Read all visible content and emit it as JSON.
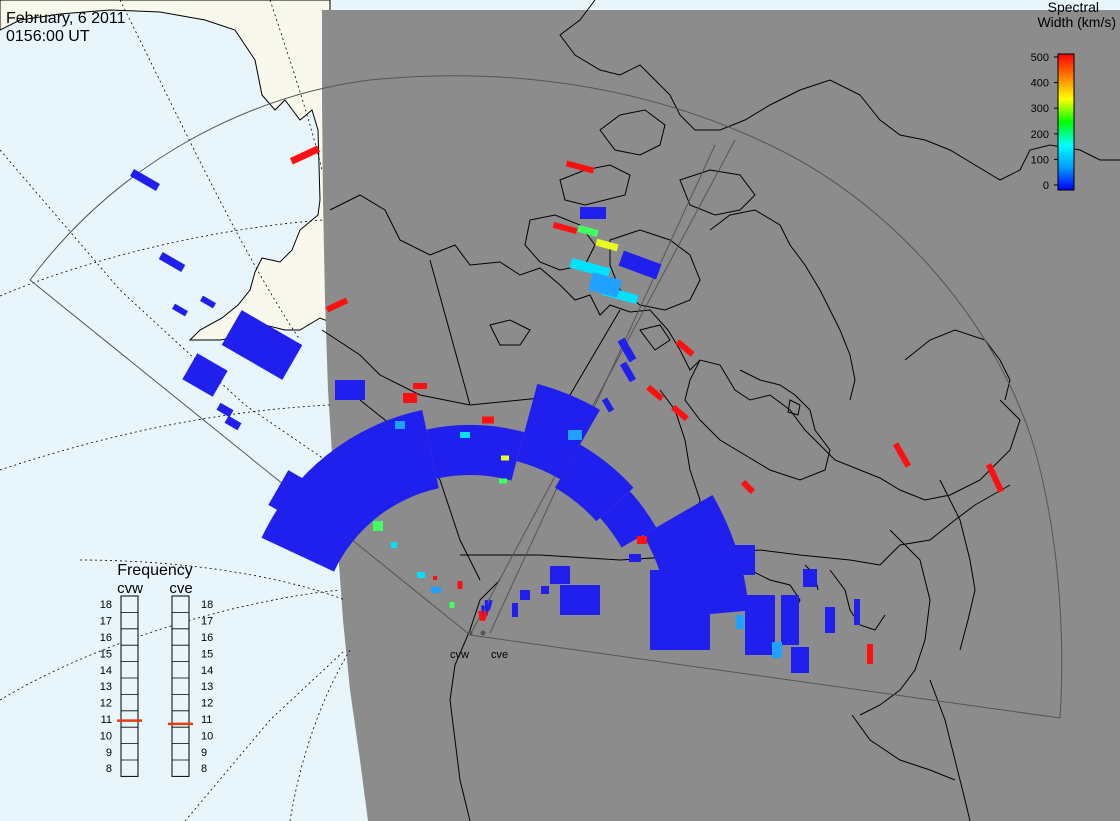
{
  "header": {
    "date": "February, 6 2011",
    "time": "0156:00 UT"
  },
  "colorbar": {
    "title_line1": "Spectral",
    "title_line2": "Width (km/s)",
    "ticks": [
      "500",
      "400",
      "300",
      "200",
      "100",
      "0"
    ],
    "min": 0,
    "max": 500,
    "colors": [
      "#0000ff",
      "#00a0ff",
      "#00ffff",
      "#00ff00",
      "#ffff00",
      "#ff8000",
      "#ff0000"
    ]
  },
  "frequency": {
    "title": "Frequency",
    "radars": [
      {
        "label": "cvw",
        "value": 10.9
      },
      {
        "label": "cve",
        "value": 10.7
      }
    ],
    "ticks": [
      "18",
      "17",
      "16",
      "15",
      "14",
      "13",
      "12",
      "11",
      "10",
      "9",
      "8"
    ],
    "min": 8,
    "max": 18,
    "marker_color": "#e04010"
  },
  "sites": [
    {
      "label": "cvw"
    },
    {
      "label": "cve"
    }
  ],
  "map_colors": {
    "ocean_day": "#e8f6fc",
    "land_day": "#f8f8ec",
    "night": "#8c8c8c",
    "coast": "#000000",
    "fov": "#555555"
  }
}
